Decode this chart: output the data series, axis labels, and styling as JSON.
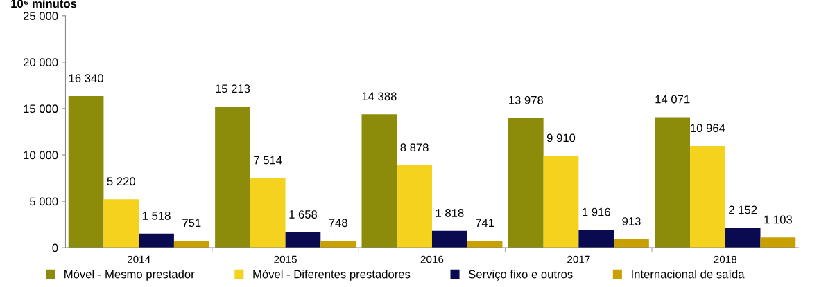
{
  "chart_data": {
    "type": "bar",
    "ylabel": "10⁶ minutos",
    "categories": [
      "2014",
      "2015",
      "2016",
      "2017",
      "2018"
    ],
    "series": [
      {
        "name": "Móvel - Mesmo prestador",
        "color": "#8c8c0a",
        "values": [
          16340,
          15213,
          14388,
          13978,
          14071
        ],
        "value_labels": [
          "16 340",
          "15 213",
          "14 388",
          "13 978",
          "14 071"
        ]
      },
      {
        "name": "Móvel - Diferentes prestadores",
        "color": "#f5d21e",
        "values": [
          5220,
          7514,
          8878,
          9910,
          10964
        ],
        "value_labels": [
          "5 220",
          "7 514",
          "8 878",
          "9 910",
          "10 964"
        ]
      },
      {
        "name": "Serviço fixo e outros",
        "color": "#0a0a50",
        "values": [
          1518,
          1658,
          1818,
          1916,
          2152
        ],
        "value_labels": [
          "1 518",
          "1 658",
          "1 818",
          "1 916",
          "2 152"
        ]
      },
      {
        "name": "Internacional de saída",
        "color": "#c8a000",
        "values": [
          751,
          748,
          741,
          913,
          1103
        ],
        "value_labels": [
          "751",
          "748",
          "741",
          "913",
          "1 103"
        ]
      }
    ],
    "ylim": [
      0,
      25000
    ],
    "yticks": [
      0,
      {
        "value": 5000,
        "label": "5 000"
      },
      {
        "value": 10000,
        "label": "10 000"
      },
      {
        "value": 15000,
        "label": "15 000"
      },
      {
        "value": 20000,
        "label": "20 000"
      },
      {
        "value": 25000,
        "label": "25 000"
      }
    ],
    "legend": "bottom",
    "grid": false
  }
}
